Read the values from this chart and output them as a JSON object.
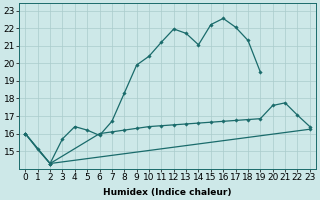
{
  "xlabel": "Humidex (Indice chaleur)",
  "bg_color": "#cde8e8",
  "line_color": "#1a6b6b",
  "grid_color": "#aacccc",
  "xlim": [
    -0.5,
    23.5
  ],
  "ylim": [
    14,
    23.4
  ],
  "yticks": [
    15,
    16,
    17,
    18,
    19,
    20,
    21,
    22,
    23
  ],
  "xticks": [
    0,
    1,
    2,
    3,
    4,
    5,
    6,
    7,
    8,
    9,
    10,
    11,
    12,
    13,
    14,
    15,
    16,
    17,
    18,
    19,
    20,
    21,
    22,
    23
  ],
  "line1_x": [
    0,
    1,
    2,
    3,
    4,
    5,
    6,
    7,
    8,
    9,
    10,
    11,
    12,
    13,
    14,
    15,
    16,
    17,
    18,
    19
  ],
  "line1_y": [
    16.0,
    15.1,
    14.3,
    15.7,
    16.4,
    16.2,
    15.9,
    16.7,
    18.3,
    19.9,
    20.4,
    21.2,
    21.95,
    21.7,
    21.05,
    22.2,
    22.55,
    22.05,
    21.3,
    19.5
  ],
  "line2_x": [
    0,
    2,
    6,
    7,
    8,
    9,
    10,
    11,
    12,
    13,
    14,
    15,
    16,
    17,
    18,
    19,
    20,
    21,
    22,
    23
  ],
  "line2_y": [
    16.0,
    14.3,
    16.0,
    16.1,
    16.2,
    16.3,
    16.4,
    16.45,
    16.5,
    16.55,
    16.6,
    16.65,
    16.7,
    16.75,
    16.8,
    16.85,
    17.6,
    17.75,
    17.05,
    16.4
  ],
  "line3_x": [
    0,
    2,
    23
  ],
  "line3_y": [
    16.0,
    14.3,
    16.25
  ],
  "font_size": 6.5
}
